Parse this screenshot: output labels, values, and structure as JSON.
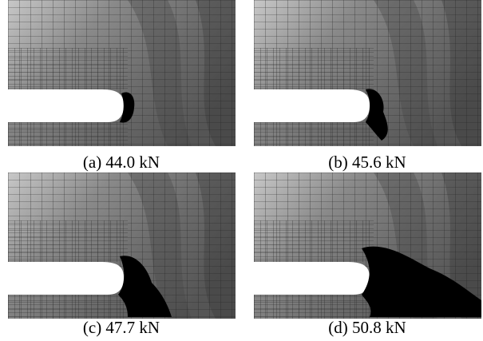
{
  "panels": [
    {
      "caption": "(a) 44.0 kN"
    },
    {
      "caption": "(b) 45.6 kN"
    },
    {
      "caption": "(c) 47.7 kN"
    },
    {
      "caption": "(d) 50.8 kN"
    }
  ]
}
